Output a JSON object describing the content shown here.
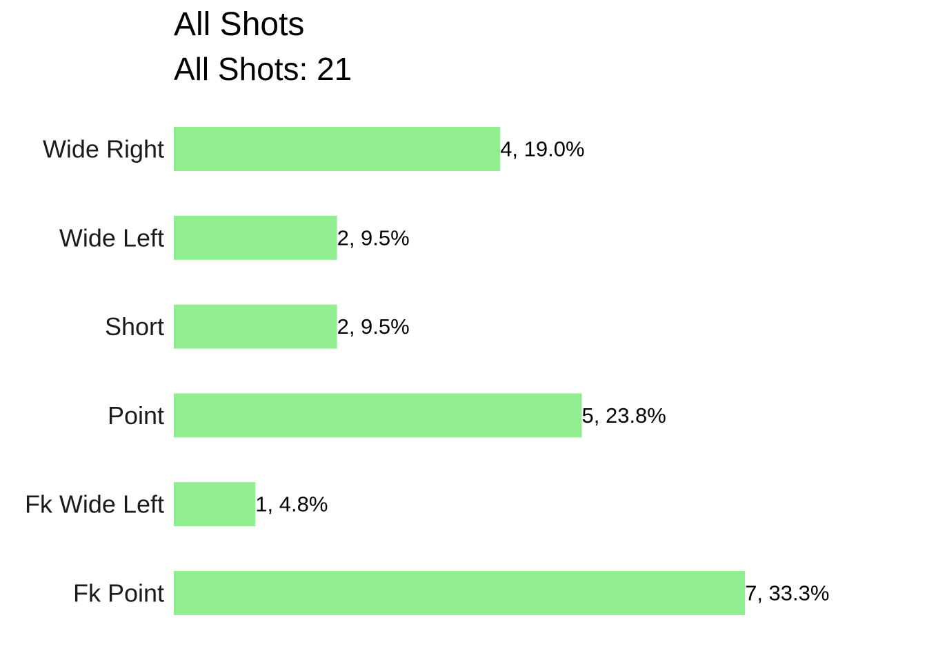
{
  "chart_data": {
    "type": "bar",
    "orientation": "horizontal",
    "title": "All Shots",
    "subtitle": "All Shots: 21",
    "categories": [
      "Wide Right",
      "Wide Left",
      "Short",
      "Point",
      "Fk Wide Left",
      "Fk Point"
    ],
    "values": [
      4,
      2,
      2,
      5,
      1,
      7
    ],
    "labels": [
      "4, 19.0%",
      "2, 9.5%",
      "2, 9.5%",
      "5, 23.8%",
      "1, 4.8%",
      "7, 33.3%"
    ],
    "xlim": [
      0,
      7
    ],
    "grid": false,
    "bar_color": "#90ee90"
  }
}
